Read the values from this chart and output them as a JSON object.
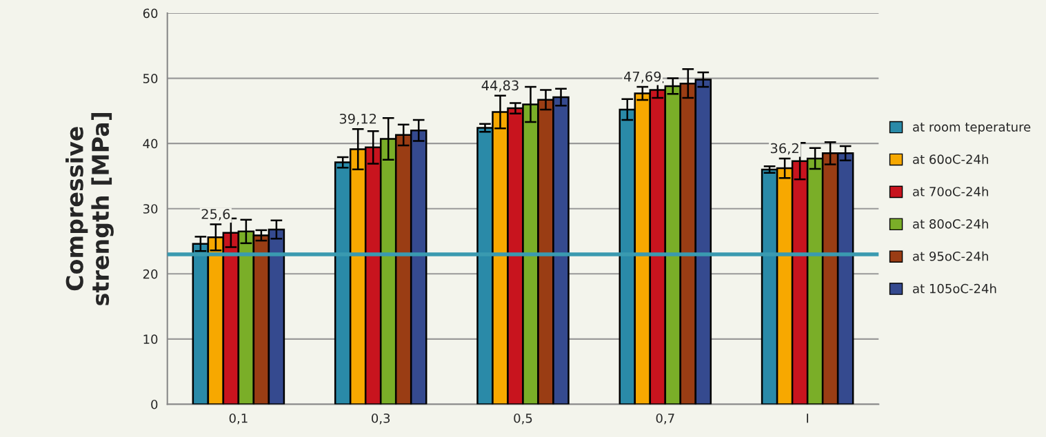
{
  "chart_data": {
    "type": "bar",
    "ylabel": "Compressive\nstrength [MPa]",
    "categories": [
      "0,1",
      "0,3",
      "0,5",
      "0,7",
      "I"
    ],
    "series": [
      {
        "name": "at room teperature",
        "color": "#2a8aa8",
        "values": [
          24.6,
          37.1,
          42.4,
          45.2,
          36.0
        ],
        "errors": [
          1.1,
          0.8,
          0.6,
          1.6,
          0.5
        ]
      },
      {
        "name": "at 60oC-24h",
        "color": "#f7a800",
        "values": [
          25.6,
          39.12,
          44.83,
          47.69,
          36.2
        ],
        "errors": [
          2.0,
          3.1,
          2.5,
          1.0,
          1.5
        ],
        "value_labels": [
          "25,6",
          "39,12",
          "44,83",
          "47,69",
          "36,2"
        ]
      },
      {
        "name": "at 70oC-24h",
        "color": "#c8141e",
        "values": [
          26.3,
          39.4,
          45.4,
          48.2,
          37.3
        ],
        "errors": [
          2.2,
          2.5,
          0.8,
          1.2,
          2.8
        ]
      },
      {
        "name": "at 80oC-24h",
        "color": "#7aae28",
        "values": [
          26.5,
          40.7,
          46.0,
          48.8,
          37.7
        ],
        "errors": [
          1.8,
          3.2,
          2.7,
          1.2,
          1.6
        ]
      },
      {
        "name": "at 95oC-24h",
        "color": "#9a3d14",
        "values": [
          25.9,
          41.3,
          46.7,
          49.2,
          38.5
        ],
        "errors": [
          0.8,
          1.6,
          1.5,
          2.2,
          1.7
        ]
      },
      {
        "name": "at 105oC-24h",
        "color": "#354a8f",
        "values": [
          26.8,
          42.0,
          47.1,
          49.8,
          38.5
        ],
        "errors": [
          1.4,
          1.6,
          1.3,
          1.1,
          1.1
        ]
      }
    ],
    "ylim": [
      0,
      60
    ],
    "yticks": [
      0,
      10,
      20,
      30,
      40,
      50,
      60
    ],
    "ref_lines": [
      {
        "axis": "y",
        "value": 23,
        "color": "#3a9ab0"
      }
    ],
    "grid": "y",
    "legend": "right"
  }
}
